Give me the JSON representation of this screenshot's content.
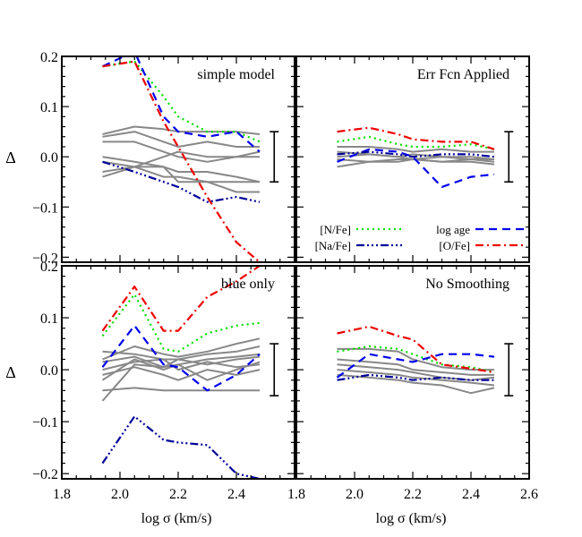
{
  "chart_data": {
    "type": "line",
    "xlabel": "log σ (km/s)",
    "ylabel": "Δ",
    "xlim": [
      1.8,
      2.6
    ],
    "ylim": [
      -0.21,
      0.2
    ],
    "xticks": [
      "1.8",
      "2.0",
      "2.2",
      "2.4",
      "2.6"
    ],
    "xticks_left": [
      "1.8",
      "2.0",
      "2.2",
      "2.4"
    ],
    "yticks": [
      "−0.2",
      "−0.1",
      "0.0",
      "0.1",
      "0.2"
    ],
    "legend": {
      "placement": "bottom of top-right panel",
      "entries": [
        {
          "label": "[N/Fe]",
          "color": "#00dd00",
          "style": "dotted"
        },
        {
          "label": "log age",
          "color": "#0000ee",
          "style": "dashed"
        },
        {
          "label": "[Na/Fe]",
          "color": "#000099",
          "style": "dash-dot-dot"
        },
        {
          "label": "[O/Fe]",
          "color": "#ee0000",
          "style": "dash-dot"
        }
      ]
    },
    "colors": {
      "nfe": "#00dd00",
      "age": "#0000ee",
      "nafe": "#000099",
      "ofe": "#ee0000",
      "other": "#888888",
      "frame": "#000000"
    },
    "x": [
      1.94,
      2.05,
      2.15,
      2.2,
      2.3,
      2.4,
      2.48
    ],
    "panels": [
      {
        "title": "simple model",
        "errbar": {
          "x": 2.53,
          "low": -0.05,
          "high": 0.05
        },
        "series": [
          {
            "key": "nfe",
            "values": [
              0.18,
              0.19,
              0.12,
              0.08,
              0.05,
              0.05,
              0.03
            ]
          },
          {
            "key": "age",
            "values": [
              0.18,
              0.21,
              0.08,
              0.05,
              0.04,
              0.05,
              0.01
            ]
          },
          {
            "key": "ofe",
            "values": [
              0.18,
              0.19,
              0.07,
              0.02,
              -0.08,
              -0.17,
              -0.21
            ]
          },
          {
            "key": "nafe",
            "values": [
              -0.01,
              -0.03,
              -0.05,
              -0.06,
              -0.09,
              -0.08,
              -0.09
            ]
          },
          {
            "key": "other",
            "values": [
              0.045,
              0.06,
              0.055,
              0.05,
              0.05,
              0.05,
              0.045
            ]
          },
          {
            "key": "other",
            "values": [
              0.04,
              0.05,
              0.03,
              0.02,
              0.03,
              0.02,
              0.02
            ]
          },
          {
            "key": "other",
            "values": [
              0.03,
              0.03,
              0.01,
              0.0,
              -0.01,
              0.0,
              0.0
            ]
          },
          {
            "key": "other",
            "values": [
              -0.03,
              -0.02,
              0.0,
              0.01,
              0.0,
              0.0,
              0.01
            ]
          },
          {
            "key": "other",
            "values": [
              0.0,
              -0.01,
              -0.02,
              -0.03,
              -0.03,
              -0.04,
              -0.05
            ]
          },
          {
            "key": "other",
            "values": [
              -0.04,
              -0.02,
              -0.04,
              -0.04,
              -0.05,
              -0.05,
              -0.05
            ]
          },
          {
            "key": "other",
            "values": [
              -0.01,
              -0.02,
              -0.02,
              -0.05,
              -0.05,
              -0.07,
              -0.07
            ]
          }
        ]
      },
      {
        "title": "Err Fcn Applied",
        "errbar": {
          "x": 2.53,
          "low": -0.05,
          "high": 0.05
        },
        "series": [
          {
            "key": "nfe",
            "values": [
              0.03,
              0.04,
              0.025,
              0.02,
              0.02,
              0.025,
              0.015
            ]
          },
          {
            "key": "age",
            "values": [
              -0.01,
              0.015,
              0.01,
              0.0,
              -0.06,
              -0.04,
              -0.035
            ]
          },
          {
            "key": "ofe",
            "values": [
              0.05,
              0.058,
              0.045,
              0.035,
              0.03,
              0.03,
              0.015
            ]
          },
          {
            "key": "nafe",
            "values": [
              0.005,
              0.01,
              0.005,
              0.0,
              0.005,
              0.005,
              0.0
            ]
          },
          {
            "key": "other",
            "values": [
              0.02,
              0.02,
              0.015,
              0.01,
              0.015,
              0.01,
              0.01
            ]
          },
          {
            "key": "other",
            "values": [
              0.01,
              0.005,
              0.0,
              0.005,
              0.0,
              0.0,
              -0.005
            ]
          },
          {
            "key": "other",
            "values": [
              -0.005,
              -0.01,
              -0.005,
              -0.005,
              -0.01,
              -0.005,
              -0.01
            ]
          },
          {
            "key": "other",
            "values": [
              -0.02,
              -0.01,
              -0.01,
              -0.005,
              -0.01,
              -0.01,
              -0.015
            ]
          },
          {
            "key": "other",
            "values": [
              0.0,
              0.005,
              0.0,
              -0.005,
              0.0,
              -0.005,
              -0.005
            ]
          }
        ]
      },
      {
        "title": "blue only",
        "errbar": {
          "x": 2.53,
          "low": -0.05,
          "high": 0.05
        },
        "series": [
          {
            "key": "nfe",
            "values": [
              0.065,
              0.145,
              0.04,
              0.035,
              0.07,
              0.085,
              0.09
            ]
          },
          {
            "key": "age",
            "values": [
              0.005,
              0.085,
              0.01,
              0.005,
              -0.04,
              -0.01,
              0.03
            ]
          },
          {
            "key": "ofe",
            "values": [
              0.075,
              0.16,
              0.075,
              0.075,
              0.14,
              0.17,
              0.2
            ]
          },
          {
            "key": "nafe",
            "values": [
              -0.18,
              -0.09,
              -0.135,
              -0.14,
              -0.145,
              -0.2,
              -0.21
            ]
          },
          {
            "key": "other",
            "values": [
              0.02,
              0.045,
              0.03,
              0.025,
              0.035,
              0.05,
              0.06
            ]
          },
          {
            "key": "other",
            "values": [
              0.035,
              0.03,
              0.02,
              0.02,
              0.03,
              0.035,
              0.045
            ]
          },
          {
            "key": "other",
            "values": [
              0.015,
              0.025,
              0.005,
              0.02,
              0.01,
              0.02,
              0.025
            ]
          },
          {
            "key": "other",
            "values": [
              0.0,
              0.015,
              0.02,
              0.0,
              0.015,
              0.005,
              0.01
            ]
          },
          {
            "key": "other",
            "values": [
              -0.01,
              0.005,
              -0.01,
              -0.02,
              0.0,
              -0.01,
              0.0
            ]
          },
          {
            "key": "other",
            "values": [
              -0.02,
              0.02,
              0.0,
              0.01,
              -0.02,
              0.0,
              0.015
            ]
          },
          {
            "key": "other",
            "values": [
              -0.04,
              -0.035,
              -0.04,
              -0.04,
              -0.04,
              -0.04,
              -0.04
            ]
          },
          {
            "key": "other",
            "values": [
              -0.06,
              0.01,
              0.005,
              0.01,
              0.02,
              0.025,
              0.03
            ]
          }
        ]
      },
      {
        "title": "No Smoothing",
        "errbar": {
          "x": 2.53,
          "low": -0.05,
          "high": 0.05
        },
        "series": [
          {
            "key": "nfe",
            "values": [
              0.035,
              0.045,
              0.04,
              0.03,
              0.01,
              0.005,
              -0.005
            ]
          },
          {
            "key": "age",
            "values": [
              -0.015,
              0.03,
              0.02,
              0.015,
              0.03,
              0.03,
              0.025
            ]
          },
          {
            "key": "ofe",
            "values": [
              0.07,
              0.083,
              0.065,
              0.058,
              0.01,
              0.002,
              -0.005
            ]
          },
          {
            "key": "nafe",
            "values": [
              -0.02,
              -0.01,
              -0.015,
              -0.02,
              -0.015,
              -0.02,
              -0.02
            ]
          },
          {
            "key": "other",
            "values": [
              0.04,
              0.04,
              0.035,
              0.02,
              0.005,
              0.0,
              0.0
            ]
          },
          {
            "key": "other",
            "values": [
              0.02,
              0.015,
              0.01,
              0.0,
              -0.005,
              -0.01,
              -0.01
            ]
          },
          {
            "key": "other",
            "values": [
              0.01,
              0.005,
              0.0,
              -0.005,
              -0.015,
              -0.02,
              -0.015
            ]
          },
          {
            "key": "other",
            "values": [
              0.0,
              -0.005,
              -0.01,
              -0.015,
              -0.02,
              -0.025,
              -0.03
            ]
          },
          {
            "key": "other",
            "values": [
              -0.01,
              -0.015,
              -0.02,
              -0.025,
              -0.03,
              -0.045,
              -0.035
            ]
          }
        ]
      }
    ]
  }
}
